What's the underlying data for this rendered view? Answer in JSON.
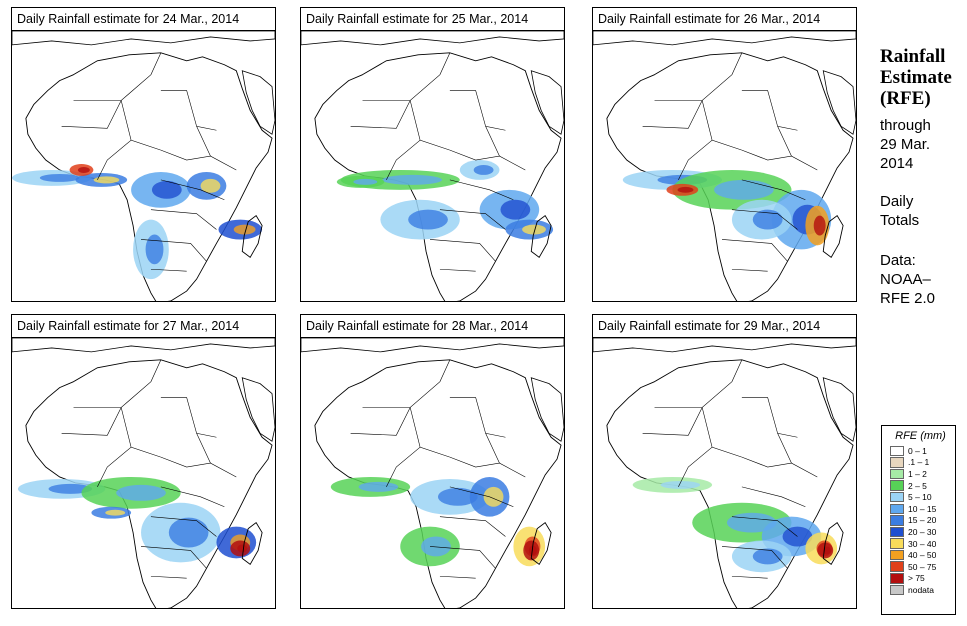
{
  "panels": [
    {
      "title": "Daily Rainfall estimate for",
      "date": "24 Mar., 2014"
    },
    {
      "title": "Daily Rainfall estimate for",
      "date": "25 Mar., 2014"
    },
    {
      "title": "Daily Rainfall estimate for",
      "date": "26 Mar., 2014"
    },
    {
      "title": "Daily Rainfall estimate for",
      "date": "27 Mar., 2014"
    },
    {
      "title": "Daily Rainfall estimate for",
      "date": "28 Mar., 2014"
    },
    {
      "title": "Daily Rainfall estimate for",
      "date": "29 Mar., 2014"
    }
  ],
  "sidebar": {
    "title_line1": "Rainfall",
    "title_line2": "Estimate",
    "title_line3": "(RFE)",
    "through": "through",
    "date_line1": "29 Mar.",
    "date_line2": "2014",
    "totals_line1": "Daily",
    "totals_line2": "Totals",
    "data_line1": "Data:",
    "data_line2": "NOAA–",
    "data_line3": "RFE 2.0"
  },
  "legend": {
    "title": "RFE (mm)",
    "items": [
      {
        "label": "0 – 1",
        "color": "#ffffff"
      },
      {
        "label": ".1 – 1",
        "color": "#e8d7bf"
      },
      {
        "label": "1 – 2",
        "color": "#a6eaa6"
      },
      {
        "label": "2 – 5",
        "color": "#57d257"
      },
      {
        "label": "5 – 10",
        "color": "#9bd3f5"
      },
      {
        "label": "10 – 15",
        "color": "#5fa8ef"
      },
      {
        "label": "15 – 20",
        "color": "#3b7de2"
      },
      {
        "label": "20 – 30",
        "color": "#1f4fd0"
      },
      {
        "label": "30 – 40",
        "color": "#f8dc5a"
      },
      {
        "label": "40 – 50",
        "color": "#f3a020"
      },
      {
        "label": "50 – 75",
        "color": "#e0401a"
      },
      {
        "label": "> 75",
        "color": "#b30f0f"
      },
      {
        "label": "nodata",
        "color": "#c8c8c8"
      }
    ]
  }
}
